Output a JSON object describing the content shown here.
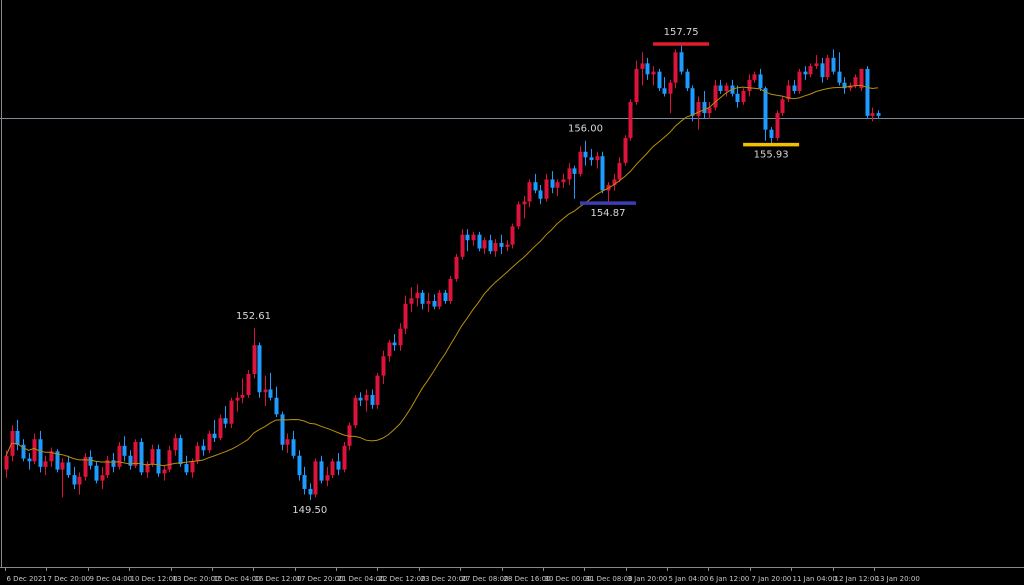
{
  "chart_data": {
    "type": "candlestick",
    "title": "",
    "colors": {
      "background": "#000000",
      "bullish": "#dc143c",
      "bearish": "#1e9bff",
      "moving_average": "#b8900a",
      "price_line": "#7d8a96",
      "axis": "#8a8a8a"
    },
    "ylim": [
      149.3,
      158.4
    ],
    "price_line": 156.41,
    "x_tick_labels": [
      "6 Dec 2021",
      "7 Dec 20:00",
      "9 Dec 04:00",
      "10 Dec 12:00",
      "13 Dec 20:00",
      "15 Dec 04:00",
      "16 Dec 12:00",
      "17 Dec 20:00",
      "21 Dec 04:00",
      "22 Dec 12:00",
      "23 Dec 20:00",
      "27 Dec 08:00",
      "28 Dec 16:00",
      "30 Dec 00:00",
      "31 Dec 08:00",
      "3 Jan 20:00",
      "5 Jan 04:00",
      "6 Jan 12:00",
      "7 Jan 20:00",
      "11 Jan 04:00",
      "12 Jan 12:00",
      "13 Jan 20:00"
    ],
    "annotations": [
      {
        "text": "152.61",
        "price": 152.61,
        "kind": "high-label",
        "candle": 44
      },
      {
        "text": "149.50",
        "price": 149.5,
        "kind": "low-label",
        "candle": 54
      },
      {
        "text": "156.00",
        "price": 156.0,
        "kind": "high-label",
        "candle": 103
      },
      {
        "text": "154.87",
        "price": 154.87,
        "kind": "low-line",
        "candle": 107,
        "color": "#3c3cb4"
      },
      {
        "text": "157.75",
        "price": 157.75,
        "kind": "high-line",
        "candle": 120,
        "color": "#dc1e2d"
      },
      {
        "text": "155.93",
        "price": 155.93,
        "kind": "low-line",
        "candle": 136,
        "color": "#f5c000"
      }
    ],
    "candles": [
      [
        150.05,
        150.4,
        149.9,
        150.3
      ],
      [
        150.3,
        150.85,
        150.2,
        150.75
      ],
      [
        150.75,
        150.95,
        150.4,
        150.5
      ],
      [
        150.5,
        150.6,
        150.2,
        150.25
      ],
      [
        150.25,
        150.35,
        150.05,
        150.2
      ],
      [
        150.2,
        150.7,
        150.15,
        150.6
      ],
      [
        150.6,
        150.75,
        150.0,
        150.1
      ],
      [
        150.1,
        150.3,
        149.95,
        150.2
      ],
      [
        150.2,
        150.45,
        150.1,
        150.38
      ],
      [
        150.38,
        150.42,
        150.0,
        150.05
      ],
      [
        150.05,
        150.25,
        149.55,
        150.18
      ],
      [
        150.18,
        150.3,
        149.9,
        149.95
      ],
      [
        149.95,
        150.1,
        149.7,
        149.78
      ],
      [
        149.78,
        150.0,
        149.6,
        149.92
      ],
      [
        149.92,
        150.35,
        149.85,
        150.28
      ],
      [
        150.28,
        150.4,
        150.05,
        150.12
      ],
      [
        150.12,
        150.2,
        149.8,
        149.85
      ],
      [
        149.85,
        150.1,
        149.7,
        149.95
      ],
      [
        149.95,
        150.3,
        149.9,
        150.22
      ],
      [
        150.22,
        150.35,
        150.0,
        150.1
      ],
      [
        150.1,
        150.55,
        150.05,
        150.48
      ],
      [
        150.48,
        150.65,
        150.2,
        150.3
      ],
      [
        150.3,
        150.4,
        150.05,
        150.12
      ],
      [
        150.12,
        150.6,
        150.08,
        150.55
      ],
      [
        150.55,
        150.62,
        149.95,
        150.0
      ],
      [
        150.0,
        150.2,
        149.9,
        150.15
      ],
      [
        150.15,
        150.5,
        150.1,
        150.42
      ],
      [
        150.42,
        150.5,
        149.92,
        149.98
      ],
      [
        149.98,
        150.12,
        149.85,
        150.05
      ],
      [
        150.05,
        150.48,
        150.0,
        150.4
      ],
      [
        150.4,
        150.7,
        150.3,
        150.62
      ],
      [
        150.62,
        150.68,
        150.1,
        150.15
      ],
      [
        150.15,
        150.3,
        149.95,
        150.0
      ],
      [
        150.0,
        150.25,
        149.9,
        150.2
      ],
      [
        150.2,
        150.55,
        150.15,
        150.48
      ],
      [
        150.48,
        150.6,
        150.3,
        150.4
      ],
      [
        150.4,
        150.75,
        150.35,
        150.7
      ],
      [
        150.7,
        150.95,
        150.55,
        150.62
      ],
      [
        150.62,
        151.05,
        150.58,
        150.98
      ],
      [
        150.98,
        151.2,
        150.8,
        150.88
      ],
      [
        150.88,
        151.35,
        150.8,
        151.3
      ],
      [
        151.3,
        151.45,
        151.1,
        151.35
      ],
      [
        151.35,
        151.7,
        151.25,
        151.4
      ],
      [
        151.4,
        151.85,
        151.35,
        151.78
      ],
      [
        151.78,
        152.61,
        151.7,
        152.3
      ],
      [
        152.3,
        152.35,
        151.35,
        151.45
      ],
      [
        151.45,
        151.75,
        151.2,
        151.5
      ],
      [
        151.5,
        151.8,
        151.3,
        151.35
      ],
      [
        151.35,
        151.55,
        151.0,
        151.05
      ],
      [
        151.05,
        151.1,
        150.4,
        150.5
      ],
      [
        150.5,
        150.7,
        150.35,
        150.6
      ],
      [
        150.6,
        150.75,
        150.25,
        150.3
      ],
      [
        150.3,
        150.4,
        149.85,
        149.95
      ],
      [
        149.95,
        150.1,
        149.6,
        149.7
      ],
      [
        149.7,
        149.8,
        149.5,
        149.6
      ],
      [
        149.6,
        150.25,
        149.55,
        150.2
      ],
      [
        150.2,
        150.3,
        149.8,
        149.85
      ],
      [
        149.85,
        150.1,
        149.75,
        149.95
      ],
      [
        149.95,
        150.25,
        149.9,
        150.2
      ],
      [
        150.2,
        150.35,
        149.95,
        150.05
      ],
      [
        150.05,
        150.55,
        150.0,
        150.48
      ],
      [
        150.48,
        150.9,
        150.4,
        150.85
      ],
      [
        150.85,
        151.4,
        150.8,
        151.35
      ],
      [
        151.35,
        151.45,
        151.2,
        151.3
      ],
      [
        151.3,
        151.5,
        151.1,
        151.4
      ],
      [
        151.4,
        151.5,
        151.15,
        151.22
      ],
      [
        151.22,
        151.8,
        151.15,
        151.75
      ],
      [
        151.75,
        152.2,
        151.6,
        152.1
      ],
      [
        152.1,
        152.4,
        152.0,
        152.35
      ],
      [
        152.35,
        152.5,
        152.2,
        152.3
      ],
      [
        152.3,
        152.7,
        152.2,
        152.6
      ],
      [
        152.6,
        153.2,
        152.5,
        153.05
      ],
      [
        153.05,
        153.35,
        152.9,
        153.15
      ],
      [
        153.15,
        153.4,
        153.0,
        153.25
      ],
      [
        153.25,
        153.3,
        152.95,
        153.05
      ],
      [
        153.05,
        153.25,
        152.9,
        153.1
      ],
      [
        153.1,
        153.22,
        152.95,
        153.0
      ],
      [
        153.0,
        153.3,
        152.95,
        153.25
      ],
      [
        153.25,
        153.3,
        153.05,
        153.1
      ],
      [
        153.1,
        153.55,
        153.05,
        153.5
      ],
      [
        153.5,
        153.95,
        153.45,
        153.9
      ],
      [
        153.9,
        154.4,
        153.85,
        154.3
      ],
      [
        154.3,
        154.4,
        154.0,
        154.2
      ],
      [
        154.2,
        154.35,
        154.1,
        154.3
      ],
      [
        154.3,
        154.35,
        154.0,
        154.05
      ],
      [
        154.05,
        154.25,
        153.95,
        154.2
      ],
      [
        154.2,
        154.3,
        153.95,
        154.0
      ],
      [
        154.0,
        154.22,
        153.9,
        154.15
      ],
      [
        154.15,
        154.3,
        153.95,
        154.08
      ],
      [
        154.08,
        154.2,
        154.0,
        154.12
      ],
      [
        154.12,
        154.5,
        154.05,
        154.45
      ],
      [
        154.45,
        154.9,
        154.4,
        154.85
      ],
      [
        154.85,
        155.0,
        154.6,
        154.9
      ],
      [
        154.9,
        155.3,
        154.8,
        155.25
      ],
      [
        155.25,
        155.4,
        155.05,
        155.1
      ],
      [
        155.1,
        155.2,
        154.85,
        154.95
      ],
      [
        154.95,
        155.4,
        154.9,
        155.3
      ],
      [
        155.3,
        155.45,
        155.05,
        155.15
      ],
      [
        155.15,
        155.3,
        155.0,
        155.25
      ],
      [
        155.25,
        155.4,
        155.15,
        155.3
      ],
      [
        155.3,
        155.6,
        155.2,
        155.5
      ],
      [
        155.5,
        155.55,
        154.95,
        155.4
      ],
      [
        155.4,
        155.9,
        155.35,
        155.8
      ],
      [
        155.8,
        156.0,
        155.55,
        155.7
      ],
      [
        155.7,
        155.85,
        155.55,
        155.65
      ],
      [
        155.65,
        155.8,
        155.5,
        155.72
      ],
      [
        155.72,
        155.8,
        155.05,
        155.1
      ],
      [
        155.1,
        155.25,
        154.87,
        155.2
      ],
      [
        155.2,
        155.4,
        155.1,
        155.3
      ],
      [
        155.3,
        155.7,
        155.25,
        155.6
      ],
      [
        155.6,
        156.1,
        155.55,
        156.05
      ],
      [
        156.05,
        156.75,
        156.0,
        156.7
      ],
      [
        156.7,
        157.45,
        156.65,
        157.3
      ],
      [
        157.3,
        157.6,
        157.0,
        157.4
      ],
      [
        157.4,
        157.5,
        157.1,
        157.2
      ],
      [
        157.2,
        157.35,
        157.0,
        157.25
      ],
      [
        157.25,
        157.3,
        156.9,
        156.95
      ],
      [
        156.95,
        157.15,
        156.8,
        156.85
      ],
      [
        156.85,
        157.1,
        156.5,
        157.05
      ],
      [
        157.05,
        157.65,
        156.95,
        157.6
      ],
      [
        157.6,
        157.75,
        157.2,
        157.25
      ],
      [
        157.25,
        157.3,
        156.9,
        156.95
      ],
      [
        156.95,
        157.0,
        156.35,
        156.45
      ],
      [
        156.45,
        156.8,
        156.2,
        156.7
      ],
      [
        156.7,
        156.9,
        156.4,
        156.5
      ],
      [
        156.5,
        156.7,
        156.4,
        156.6
      ],
      [
        156.6,
        157.1,
        156.55,
        157.0
      ],
      [
        157.0,
        157.1,
        156.85,
        156.9
      ],
      [
        156.9,
        157.05,
        156.8,
        157.0
      ],
      [
        157.0,
        157.1,
        156.8,
        156.85
      ],
      [
        156.85,
        157.0,
        156.6,
        156.7
      ],
      [
        156.7,
        156.95,
        156.65,
        156.9
      ],
      [
        156.9,
        157.2,
        156.8,
        157.1
      ],
      [
        157.1,
        157.25,
        157.05,
        157.2
      ],
      [
        157.2,
        157.3,
        156.9,
        156.95
      ],
      [
        156.95,
        156.98,
        156.0,
        156.2
      ],
      [
        156.2,
        156.25,
        155.93,
        156.05
      ],
      [
        156.05,
        156.55,
        156.0,
        156.5
      ],
      [
        156.5,
        156.8,
        156.45,
        156.75
      ],
      [
        156.75,
        157.1,
        156.7,
        157.0
      ],
      [
        157.0,
        157.1,
        156.85,
        156.9
      ],
      [
        156.9,
        157.3,
        156.85,
        157.25
      ],
      [
        157.25,
        157.35,
        157.1,
        157.2
      ],
      [
        157.2,
        157.4,
        157.15,
        157.35
      ],
      [
        157.35,
        157.55,
        157.3,
        157.4
      ],
      [
        157.4,
        157.5,
        157.05,
        157.15
      ],
      [
        157.15,
        157.55,
        157.1,
        157.5
      ],
      [
        157.5,
        157.65,
        157.2,
        157.25
      ],
      [
        157.25,
        157.6,
        157.0,
        157.05
      ],
      [
        157.05,
        157.15,
        156.85,
        156.95
      ],
      [
        156.95,
        157.05,
        156.9,
        157.0
      ],
      [
        157.0,
        157.2,
        156.95,
        157.15
      ],
      [
        156.95,
        157.3,
        156.9,
        157.3
      ],
      [
        157.3,
        157.35,
        156.4,
        156.45
      ],
      [
        156.45,
        156.6,
        156.35,
        156.5
      ],
      [
        156.5,
        156.55,
        156.4,
        156.45
      ]
    ]
  }
}
